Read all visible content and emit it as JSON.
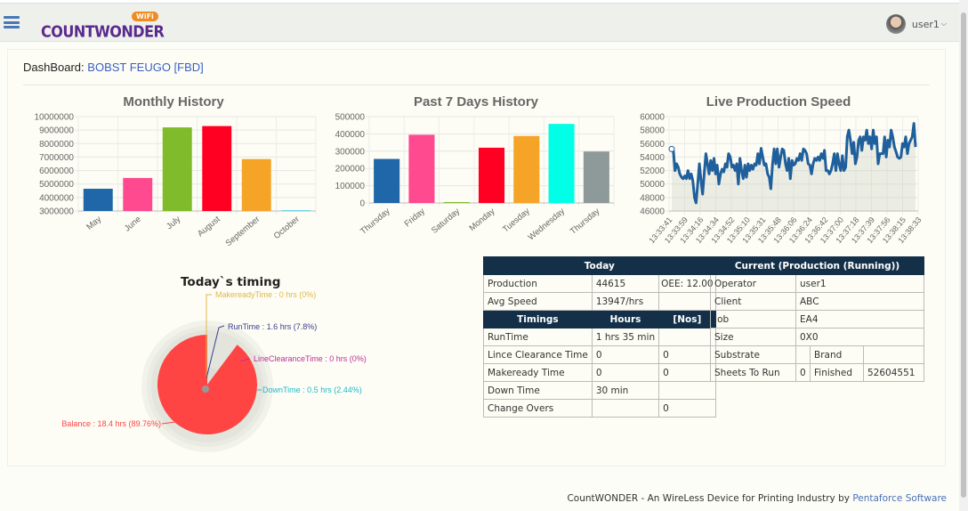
{
  "header": {
    "logo_text": "COUNTWONDER",
    "logo_badge": "WiFi",
    "user_name": "user1"
  },
  "dashboard": {
    "label": "DashBoard:",
    "machine": "BOBST FEUGO [FBD]"
  },
  "colors": {
    "header_bg": "#eef0ec",
    "table_header": "#143049",
    "link": "#3a5fc4"
  },
  "chart_data": [
    {
      "type": "bar",
      "title": "Monthly History",
      "categories": [
        "May",
        "June",
        "July",
        "August",
        "September",
        "October"
      ],
      "values": [
        4650000,
        5450000,
        9200000,
        9300000,
        6850000,
        3050000
      ],
      "colors": [
        "#1f67a8",
        "#ff4a8f",
        "#7fbb2a",
        "#ff0022",
        "#f5a428",
        "#6fd3e6"
      ],
      "ylim": [
        3000000,
        10000000
      ],
      "yticks": [
        "3000000",
        "4000000",
        "5000000",
        "6000000",
        "7000000",
        "8000000",
        "9000000",
        "10000000"
      ],
      "grid": true
    },
    {
      "type": "bar",
      "title": "Past 7 Days History",
      "categories": [
        "Thursday",
        "Friday",
        "Saturday",
        "Monday",
        "Tuesday",
        "Wednesday",
        "Thursday"
      ],
      "values": [
        255000,
        395000,
        0,
        320000,
        388000,
        458000,
        298000
      ],
      "colors": [
        "#1f67a8",
        "#ff4a8f",
        "#7fbb2a",
        "#ff0022",
        "#f5a428",
        "#00ffe6",
        "#8e9a99"
      ],
      "ylim": [
        0,
        500000
      ],
      "yticks": [
        "0",
        "100000",
        "200000",
        "300000",
        "400000",
        "500000"
      ],
      "grid": true
    },
    {
      "type": "area",
      "title": "Live Production Speed",
      "xticks": [
        "13:33:41",
        "13:33:59",
        "13:34:16",
        "13:34:34",
        "13:34:52",
        "13:35:10",
        "13:35:31",
        "13:35:48",
        "13:36:06",
        "13:36:24",
        "13:36:42",
        "13:37:00",
        "13:37:18",
        "13:37:39",
        "13:37:56",
        "13:38:15",
        "13:38:33"
      ],
      "ylim": [
        46000,
        60000
      ],
      "yticks": [
        "46000",
        "48000",
        "50000",
        "52000",
        "54000",
        "56000",
        "58000",
        "60000"
      ],
      "grid": true,
      "line_color": "#1f5f9c",
      "values": [
        55200,
        55000,
        52000,
        53000,
        52500,
        51500,
        51000,
        50800,
        51200,
        50800,
        52000,
        50800,
        51500,
        50500,
        48000,
        47200,
        50000,
        53000,
        50500,
        48500,
        51500,
        54500,
        53000,
        51500,
        53500,
        52000,
        53800,
        51500,
        52800,
        50000,
        51500,
        52200,
        51800,
        53000,
        52500,
        54500,
        54000,
        52500,
        52800,
        52000,
        53000,
        50000,
        53800,
        52000,
        50800,
        52800,
        51000,
        53000,
        52000,
        52800,
        52200,
        53000,
        52800,
        54500,
        53000,
        55300,
        54000,
        52800,
        53000,
        51500,
        51000,
        49300,
        53000,
        55200,
        53000,
        55200,
        52500,
        54000,
        55200,
        55000,
        53000,
        52000,
        53800,
        50800,
        53500,
        52800,
        53000,
        53800,
        53500,
        54500,
        53500,
        55200,
        55000,
        54500,
        53000,
        52800,
        51500,
        53000,
        53800,
        53500,
        54000,
        53500,
        54500,
        53800,
        55000,
        52000,
        52000,
        51500,
        52000,
        53000,
        54500,
        52000,
        54500,
        53000,
        52000,
        54200,
        52000,
        52500,
        57000,
        58000,
        56500,
        54500,
        56200,
        53000,
        54000,
        56500,
        57000,
        55000,
        57000,
        56500,
        58000,
        56000,
        57000,
        55200,
        58000,
        56000,
        57000,
        53000,
        54500,
        54500,
        54500,
        57000,
        54000,
        56500,
        55500,
        58000,
        57000,
        55500,
        54800,
        54000,
        53800,
        54000,
        56000,
        55500,
        57000,
        54500,
        56000,
        56500,
        57000,
        59000,
        55500
      ]
    },
    {
      "type": "pie",
      "title": "Today`s timing",
      "slices": [
        {
          "name": "MakereadyTime",
          "label": "MakereadyTime : 0 hrs (0%)",
          "value": 0,
          "color": "#e0b84a"
        },
        {
          "name": "RunTime",
          "label": "RunTime : 1.6 hrs (7.8%)",
          "value": 7.8,
          "color": "#3a3f8f"
        },
        {
          "name": "LineClearanceTime",
          "label": "LineClearanceTime : 0 hrs (0%)",
          "value": 0,
          "color": "#c0309a"
        },
        {
          "name": "DownTime",
          "label": "DownTime : 0.5 hrs (2.44%)",
          "value": 2.44,
          "color": "#20b8c8"
        },
        {
          "name": "Balance",
          "label": "Balance : 18.4 hrs (89.76%)",
          "value": 89.76,
          "color": "#ff4444"
        }
      ]
    }
  ],
  "today_table": {
    "title": "Today",
    "rows": [
      [
        "Production",
        "44615",
        "OEE: 12.00"
      ],
      [
        "Avg Speed",
        "13947/hrs",
        ""
      ]
    ],
    "timing_headers": [
      "Timings",
      "Hours",
      "[Nos]"
    ],
    "timing_rows": [
      [
        "RunTime",
        "1 hrs 35 min",
        ""
      ],
      [
        "Lince Clearance Time",
        "0",
        "0"
      ],
      [
        "Makeready Time",
        "0",
        "0"
      ],
      [
        "Down Time",
        "30 min",
        ""
      ],
      [
        "Change Overs",
        "",
        "0"
      ]
    ]
  },
  "current_table": {
    "title": "Current (Production (Running))",
    "rows": [
      [
        "Operator",
        "user1"
      ],
      [
        "Client",
        "ABC"
      ],
      [
        "Job",
        "EA4"
      ],
      [
        "Size",
        "0X0"
      ]
    ],
    "substrate": [
      "Substrate",
      "",
      "Brand",
      ""
    ],
    "sheets": [
      "Sheets To Run",
      "0",
      "Finished",
      "52604551"
    ]
  },
  "footer": {
    "text": "CountWONDER - An WireLess Device for Printing Industry by ",
    "link": "Pentaforce Software"
  }
}
